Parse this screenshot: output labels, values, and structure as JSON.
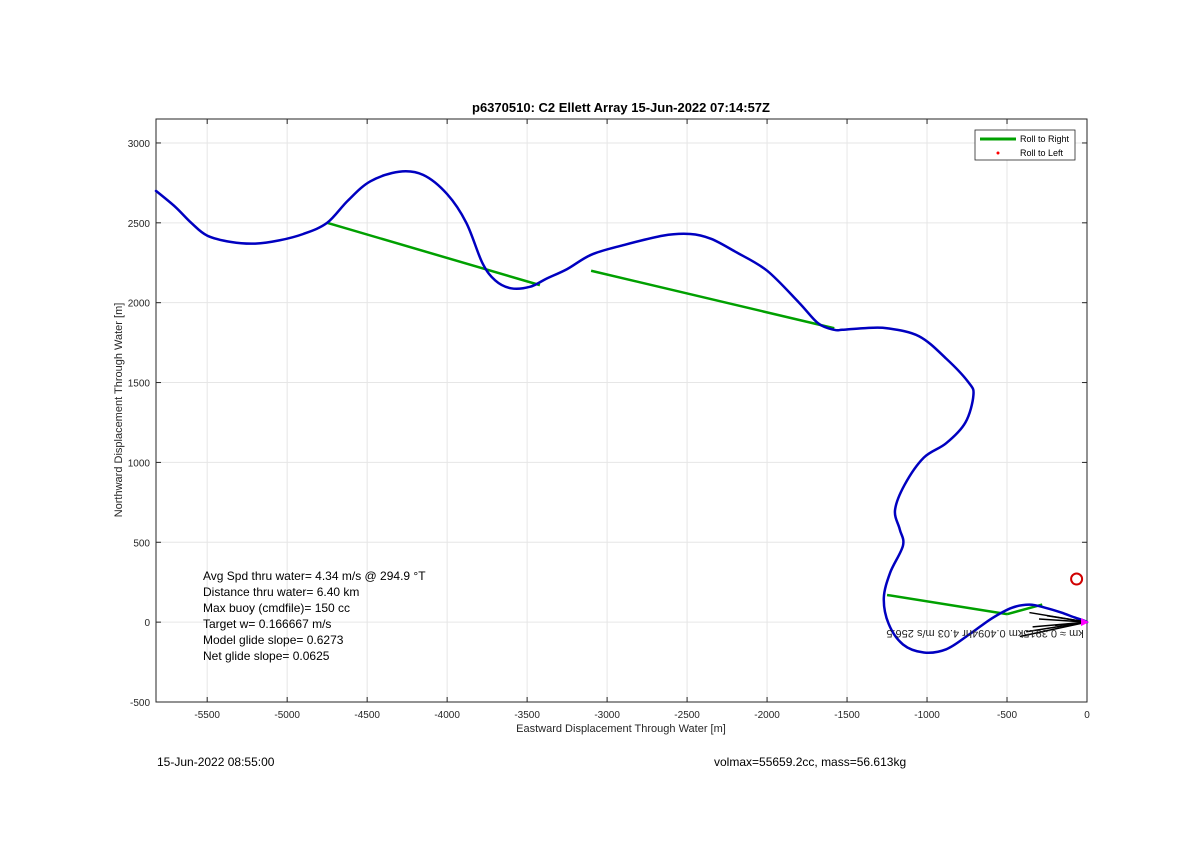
{
  "chart_data": {
    "type": "line",
    "title": "p6370510: C2 Ellett Array 15-Jun-2022 07:14:57Z",
    "xlabel": "Eastward Displacement Through Water [m]",
    "ylabel": "Northward Displacement Through Water [m]",
    "xlim": [
      -5820,
      0
    ],
    "ylim": [
      -500,
      3150
    ],
    "xticks": [
      -5500,
      -5000,
      -4500,
      -4000,
      -3500,
      -3000,
      -2500,
      -2000,
      -1500,
      -1000,
      -500,
      0
    ],
    "yticks": [
      -500,
      0,
      500,
      1000,
      1500,
      2000,
      2500,
      3000
    ],
    "grid": true,
    "legend_position": "top-right",
    "legend": [
      {
        "label": "Roll to Right",
        "color": "#00a000",
        "marker": "line"
      },
      {
        "label": "Roll to Left",
        "color": "#ff0000",
        "marker": "dot"
      }
    ],
    "track": {
      "color": "#0000c0",
      "x": [
        -5820,
        -5700,
        -5600,
        -5500,
        -5350,
        -5200,
        -5050,
        -4900,
        -4750,
        -4620,
        -4480,
        -4300,
        -4150,
        -4000,
        -3880,
        -3780,
        -3700,
        -3600,
        -3480,
        -3380,
        -3250,
        -3100,
        -2900,
        -2650,
        -2480,
        -2350,
        -2200,
        -2000,
        -1800,
        -1680,
        -1580,
        -1530,
        -1400,
        -1250,
        -1050,
        -880,
        -740,
        -710,
        -760,
        -880,
        -1020,
        -1140,
        -1200,
        -1170,
        -1150,
        -1230,
        -1270,
        -1240,
        -1150,
        -1020,
        -880,
        -740,
        -600,
        -470,
        -360,
        -260,
        -160,
        -80,
        -20,
        0
      ],
      "y": [
        2700,
        2600,
        2500,
        2420,
        2380,
        2370,
        2390,
        2430,
        2500,
        2640,
        2760,
        2820,
        2800,
        2680,
        2500,
        2250,
        2140,
        2090,
        2100,
        2150,
        2210,
        2300,
        2360,
        2420,
        2430,
        2400,
        2320,
        2200,
        2000,
        1870,
        1830,
        1830,
        1840,
        1840,
        1790,
        1650,
        1500,
        1420,
        1250,
        1120,
        1030,
        860,
        700,
        580,
        480,
        310,
        150,
        -10,
        -140,
        -190,
        -170,
        -80,
        20,
        90,
        110,
        90,
        60,
        30,
        10,
        0
      ]
    },
    "roll_segments": [
      {
        "x": [
          -4750,
          -3420
        ],
        "y": [
          2500,
          2110
        ]
      },
      {
        "x": [
          -3100,
          -1580
        ],
        "y": [
          2200,
          1840
        ]
      },
      {
        "x": [
          -1250,
          -500
        ],
        "y": [
          170,
          50
        ]
      },
      {
        "x": [
          -500,
          -280
        ],
        "y": [
          50,
          110
        ]
      }
    ],
    "waypoint_circle": {
      "x": -65,
      "y": 270,
      "color": "#d00000"
    },
    "start_marker": {
      "x": 0,
      "y": 0,
      "color": "#ff00ff"
    },
    "overlay_text": "km ≈ 0.3915km 0.4094hr 4.03 m/s 256.5",
    "stats": [
      "Avg Spd thru water=  4.34 m/s @ 294.9 °T",
      "Distance thru water=  6.40 km",
      "Max buoy (cmdfile)= 150 cc",
      "Target w= 0.166667 m/s",
      "Model glide slope= 0.6273",
      "Net glide slope= 0.0625"
    ]
  },
  "footer": {
    "timestamp": "15-Jun-2022 08:55:00",
    "vol_mass": "volmax=55659.2cc, mass=56.613kg"
  }
}
